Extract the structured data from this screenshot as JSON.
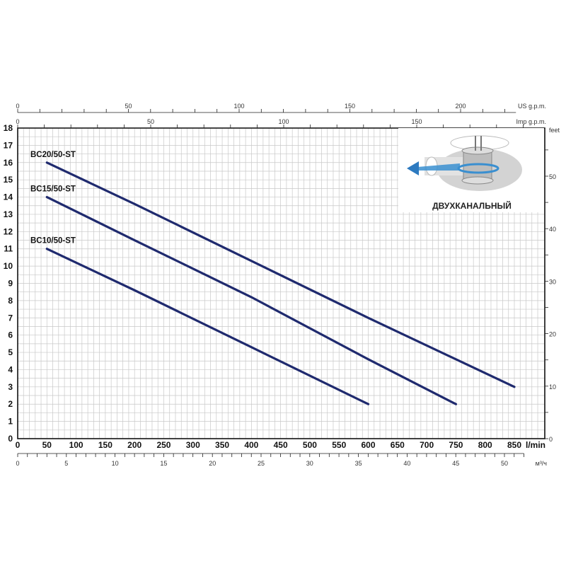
{
  "chart_data": {
    "type": "line",
    "xlabel": "l/min",
    "ylabel": "",
    "xlim": [
      0,
      900
    ],
    "ylim": [
      0,
      18
    ],
    "x_ticks": [
      0,
      50,
      100,
      150,
      200,
      250,
      300,
      350,
      400,
      450,
      500,
      550,
      600,
      650,
      700,
      750,
      800,
      850
    ],
    "y_ticks": [
      0,
      1,
      2,
      3,
      4,
      5,
      6,
      7,
      8,
      9,
      10,
      11,
      12,
      13,
      14,
      15,
      16,
      17,
      18
    ],
    "grid": true,
    "series": [
      {
        "name": "BC20/50-ST",
        "x": [
          50,
          200,
          400,
          600,
          850
        ],
        "y": [
          16,
          13.6,
          10.3,
          7.0,
          3
        ]
      },
      {
        "name": "BC15/50-ST",
        "x": [
          50,
          200,
          400,
          600,
          750
        ],
        "y": [
          14,
          11.5,
          8.2,
          4.6,
          2
        ]
      },
      {
        "name": "BC10/50-ST",
        "x": [
          50,
          200,
          400,
          600
        ],
        "y": [
          11,
          8.6,
          5.3,
          2
        ]
      }
    ],
    "secondary_axes": {
      "us_gpm": {
        "label": "US g.p.m.",
        "range": [
          0,
          225
        ],
        "labels": [
          0,
          50,
          100,
          150,
          200
        ]
      },
      "imp_gpm": {
        "label": "Imp g.p.m.",
        "range": [
          0,
          190
        ],
        "labels": [
          0,
          50,
          100,
          150
        ]
      },
      "m3h": {
        "label": "м³/ч",
        "range": [
          0,
          52
        ],
        "labels": [
          0,
          5,
          10,
          15,
          20,
          25,
          30,
          35,
          40,
          45,
          50
        ]
      },
      "feet": {
        "label": "feet",
        "range": [
          0,
          59
        ],
        "labels": [
          0,
          10,
          20,
          30,
          40,
          50
        ]
      }
    },
    "inset": {
      "label": "ДВУХКАНАЛЬНЫЙ"
    },
    "colors": {
      "line": "#1f2a6e",
      "grid": "#c8c8c8",
      "arrow": "#3a8fd0"
    }
  }
}
